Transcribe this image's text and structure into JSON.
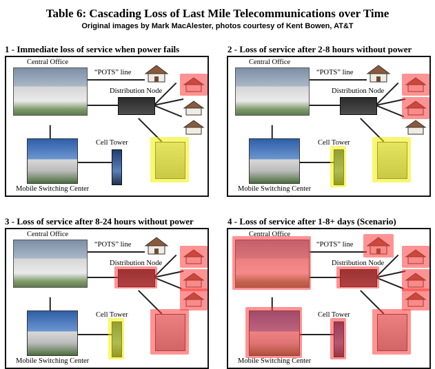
{
  "title": "Table 6: Cascading Loss of Last Mile Telecommunications over Time",
  "subtitle": "Original images by Mark MacAlester, photos courtesy of Kent Bowen, AT&T",
  "labels": {
    "central_office": "Central Office",
    "pots_line": "“POTS” line",
    "distribution_node": "Distribution Node",
    "cell_tower": "Cell Tower",
    "mobile_switching_center": "Mobile Switching Center"
  },
  "colors": {
    "red": "#ff3b3b",
    "yellow": "#f2f000"
  },
  "panels": [
    {
      "title": "1 - Immediate loss of service when power fails",
      "status": {
        "central_office": "ok",
        "pots_house": "ok",
        "distribution_node": "ok",
        "house1": "red",
        "house2": "ok",
        "house3": "ok",
        "cabinet": "yellow",
        "cell_tower": "ok",
        "msc": "ok"
      }
    },
    {
      "title": "2 - Loss of service after 2-8 hours without power",
      "status": {
        "central_office": "ok",
        "pots_house": "ok",
        "distribution_node": "ok",
        "house1": "red",
        "house2": "red",
        "house3": "ok",
        "cabinet": "yellow",
        "cell_tower": "yellow",
        "msc": "ok"
      }
    },
    {
      "title": "3 - Loss of service after 8-24 hours without power",
      "status": {
        "central_office": "ok",
        "pots_house": "ok",
        "distribution_node": "red",
        "house1": "red",
        "house2": "red",
        "house3": "red",
        "cabinet": "red",
        "cell_tower": "yellow",
        "msc": "ok"
      }
    },
    {
      "title": "4 - Loss of service after 1-8+ days (Scenario)",
      "status": {
        "central_office": "red",
        "pots_house": "red",
        "distribution_node": "red",
        "house1": "red",
        "house2": "red",
        "house3": "red",
        "cabinet": "red",
        "cell_tower": "red",
        "msc": "red"
      }
    }
  ]
}
